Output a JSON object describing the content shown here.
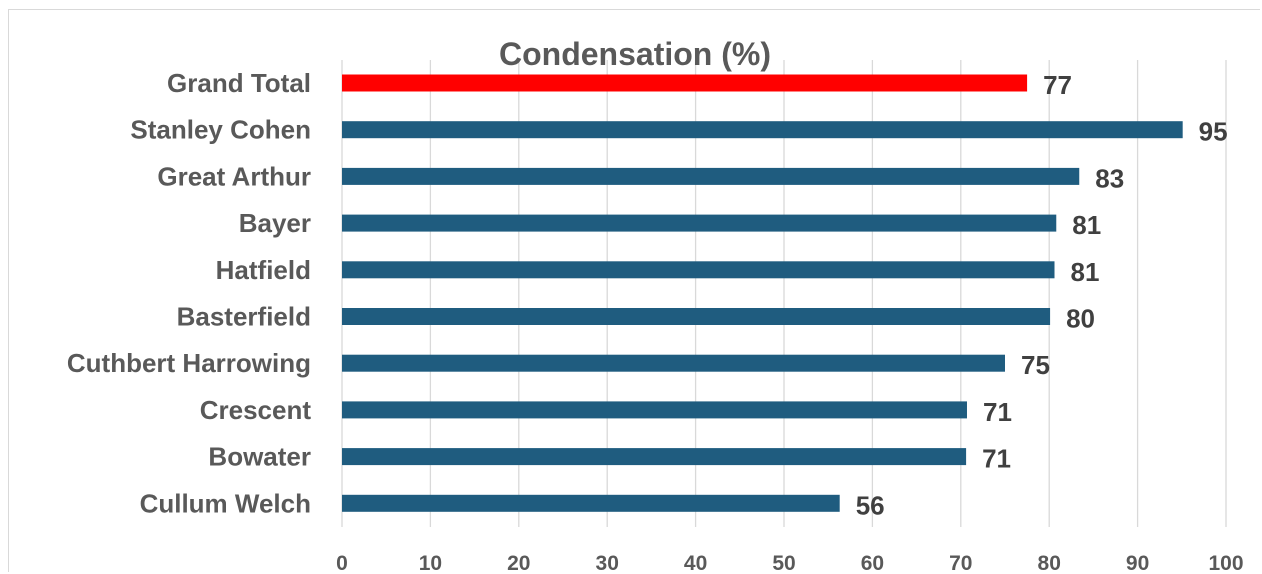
{
  "chart_data": {
    "type": "bar",
    "orientation": "horizontal",
    "title": "Condensation (%)",
    "xlabel": "",
    "ylabel": "",
    "categories": [
      "Grand Total",
      "Stanley Cohen",
      "Great Arthur",
      "Bayer",
      "Hatfield",
      "Basterfield",
      "Cuthbert Harrowing",
      "Crescent",
      "Bowater",
      "Cullum Welch"
    ],
    "values": [
      77.5,
      95.1,
      83.4,
      80.8,
      80.6,
      80.1,
      75.0,
      70.7,
      70.6,
      56.3
    ],
    "data_labels": [
      "77",
      "95",
      "83",
      "81",
      "81",
      "80",
      "75",
      "71",
      "71",
      "56"
    ],
    "highlight_index": 0,
    "xlim": [
      0,
      100
    ],
    "x_ticks": [
      0,
      10,
      20,
      30,
      40,
      50,
      60,
      70,
      80,
      90,
      100
    ],
    "x_tick_labels": [
      "0",
      "10",
      "20",
      "30",
      "40",
      "50",
      "60",
      "70",
      "80",
      "90",
      "100"
    ],
    "grid": true,
    "legend": "none",
    "colors": {
      "bar": "#1f5c7f",
      "highlight": "#ff0000",
      "grid": "#d9d9d9"
    }
  }
}
